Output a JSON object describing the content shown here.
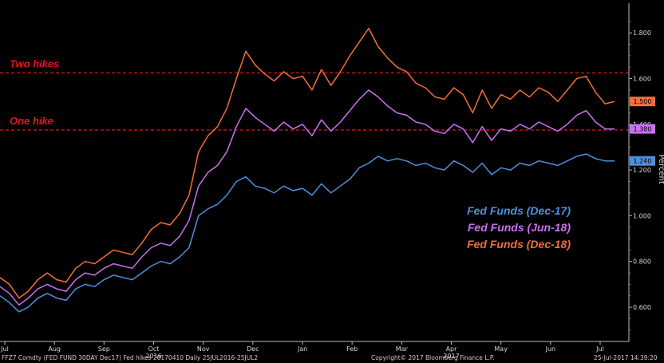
{
  "chart_data": {
    "type": "line",
    "ylabel": "Percent",
    "ylim": [
      0.45,
      1.93
    ],
    "y_ticks": [
      "0.600",
      "0.800",
      "1.000",
      "1.200",
      "1.400",
      "1.600",
      "1.800"
    ],
    "x_ticks": [
      "Jul",
      "Aug",
      "Sep",
      "Oct",
      "Nov",
      "Dec",
      "Jan",
      "Feb",
      "Mar",
      "Apr",
      "May",
      "Jun",
      "Jul"
    ],
    "year_labels": [
      "2016",
      "2017"
    ],
    "grid": false,
    "legend_placement": "right-center",
    "reference_lines": [
      {
        "label": "Two hikes",
        "value": 1.625,
        "color": "#e4161b"
      },
      {
        "label": "One hike",
        "value": 1.375,
        "color": "#e4161b"
      }
    ],
    "series": [
      {
        "name": "Fed Funds (Dec-17)",
        "color": "#4f8fde",
        "last_value": "1.240",
        "values": [
          0.65,
          0.62,
          0.58,
          0.6,
          0.64,
          0.66,
          0.64,
          0.63,
          0.68,
          0.7,
          0.69,
          0.72,
          0.74,
          0.73,
          0.72,
          0.75,
          0.78,
          0.8,
          0.79,
          0.82,
          0.86,
          1.0,
          1.03,
          1.05,
          1.09,
          1.15,
          1.17,
          1.13,
          1.12,
          1.1,
          1.13,
          1.11,
          1.12,
          1.09,
          1.14,
          1.1,
          1.13,
          1.16,
          1.21,
          1.23,
          1.26,
          1.24,
          1.25,
          1.24,
          1.22,
          1.23,
          1.21,
          1.2,
          1.24,
          1.22,
          1.19,
          1.23,
          1.18,
          1.21,
          1.2,
          1.23,
          1.22,
          1.24,
          1.23,
          1.22,
          1.24,
          1.26,
          1.27,
          1.25,
          1.24,
          1.24
        ]
      },
      {
        "name": "Fed Funds (Jun-18)",
        "color": "#c971f0",
        "last_value": "1.380",
        "values": [
          0.69,
          0.66,
          0.61,
          0.64,
          0.68,
          0.7,
          0.68,
          0.67,
          0.72,
          0.75,
          0.74,
          0.77,
          0.79,
          0.78,
          0.77,
          0.82,
          0.86,
          0.88,
          0.87,
          0.91,
          0.98,
          1.13,
          1.19,
          1.22,
          1.28,
          1.39,
          1.47,
          1.43,
          1.4,
          1.37,
          1.41,
          1.38,
          1.4,
          1.35,
          1.42,
          1.37,
          1.41,
          1.46,
          1.51,
          1.55,
          1.52,
          1.48,
          1.45,
          1.44,
          1.41,
          1.4,
          1.37,
          1.36,
          1.4,
          1.38,
          1.32,
          1.39,
          1.33,
          1.38,
          1.37,
          1.4,
          1.38,
          1.41,
          1.39,
          1.37,
          1.4,
          1.44,
          1.46,
          1.41,
          1.38,
          1.38
        ]
      },
      {
        "name": "Fed Funds (Dec-18)",
        "color": "#f26d3d",
        "last_value": "1.500",
        "values": [
          0.73,
          0.7,
          0.64,
          0.67,
          0.72,
          0.75,
          0.72,
          0.71,
          0.77,
          0.8,
          0.79,
          0.82,
          0.85,
          0.84,
          0.83,
          0.88,
          0.94,
          0.97,
          0.96,
          1.01,
          1.09,
          1.28,
          1.35,
          1.39,
          1.47,
          1.6,
          1.72,
          1.66,
          1.62,
          1.59,
          1.63,
          1.6,
          1.61,
          1.55,
          1.64,
          1.57,
          1.63,
          1.7,
          1.76,
          1.82,
          1.74,
          1.69,
          1.65,
          1.63,
          1.58,
          1.56,
          1.52,
          1.51,
          1.56,
          1.53,
          1.45,
          1.55,
          1.47,
          1.53,
          1.51,
          1.55,
          1.52,
          1.56,
          1.54,
          1.5,
          1.55,
          1.6,
          1.61,
          1.54,
          1.49,
          1.5
        ]
      }
    ]
  },
  "footer": {
    "ticker": "FFZ7 Comdty (FED FUND 30DAY   Dec17) Fed hikes 20170410  Daily 25JUL2016-25JUL2",
    "copyright": "Copyright© 2017 Bloomberg Finance L.P.",
    "timestamp": "25-Jul-2017 14:39:20"
  }
}
